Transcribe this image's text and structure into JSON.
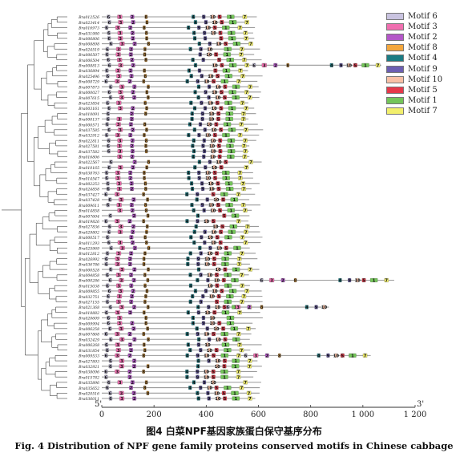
{
  "chart_data": {
    "type": "motif-distribution",
    "xlim": [
      0,
      1200
    ],
    "x_ticks": [
      0,
      200,
      400,
      600,
      800,
      1000,
      1200
    ],
    "x_tick_labels": [
      "0",
      "200",
      "400",
      "600",
      "800",
      "1 000",
      "1 200"
    ],
    "five_prime_label": "5'",
    "three_prime_label": "3'",
    "genes": [
      "Bra012526",
      "Bra023414",
      "Bra016973",
      "Bra031980",
      "Bra006806",
      "Bra008898",
      "Bra024519",
      "Bra006507",
      "Bra006504",
      "Bra008813",
      "Bra036894",
      "Bra025496",
      "Bra008729",
      "Bra007873",
      "Bra000027",
      "Bra007615",
      "Bra023854",
      "Bra003161",
      "Bra010091",
      "Bra000137",
      "Bra000571",
      "Bra037585",
      "Bra032912",
      "Bra022811",
      "Bra027581",
      "Bra037582",
      "Bra016806",
      "Bra022567",
      "Bra010165",
      "Bra038763",
      "Bra014547",
      "Bra002253",
      "Bra024858",
      "Bra037427",
      "Bra037428",
      "Bra009611",
      "Bra014858",
      "Bra007604",
      "Bra019826",
      "Bra027836",
      "Bra029802",
      "Bra000517",
      "Bra011293",
      "Bra025969",
      "Bra012812",
      "Bra026992",
      "Bra036786",
      "Bra000528",
      "Bra004858",
      "Bra000286",
      "Bra015038",
      "Bra009855",
      "Bra032751",
      "Bra027155",
      "Bra021368",
      "Bra018882",
      "Bra020609",
      "Bra009994",
      "Bra006258",
      "Bra007868",
      "Bra032429",
      "Bra006268",
      "Bra031854",
      "Bra009533",
      "Bra027893",
      "Bra032921",
      "Bra038096",
      "Bra015782",
      "Bra035896",
      "Bra035652",
      "Bra020516",
      "Bra036011"
    ],
    "legend": [
      {
        "name": "Motif 6",
        "color": "#c9c3e0"
      },
      {
        "name": "Motif 3",
        "color": "#f06fb0"
      },
      {
        "name": "Motif 2",
        "color": "#b457c8"
      },
      {
        "name": "Motif 8",
        "color": "#f3a73e"
      },
      {
        "name": "Motif 4",
        "color": "#1a7c84"
      },
      {
        "name": "Motif 9",
        "color": "#6c5fb2"
      },
      {
        "name": "Motif 10",
        "color": "#f9c0a6"
      },
      {
        "name": "Motif 5",
        "color": "#e6384a"
      },
      {
        "name": "Motif 1",
        "color": "#74c55a"
      },
      {
        "name": "Motif 7",
        "color": "#f2ef6c"
      }
    ]
  },
  "caption_cn": "图4  白菜NPF基因家族蛋白保守基序分布",
  "caption_en": "Fig. 4   Distribution of NPF gene family proteins conserved motifs in Chinese cabbage"
}
